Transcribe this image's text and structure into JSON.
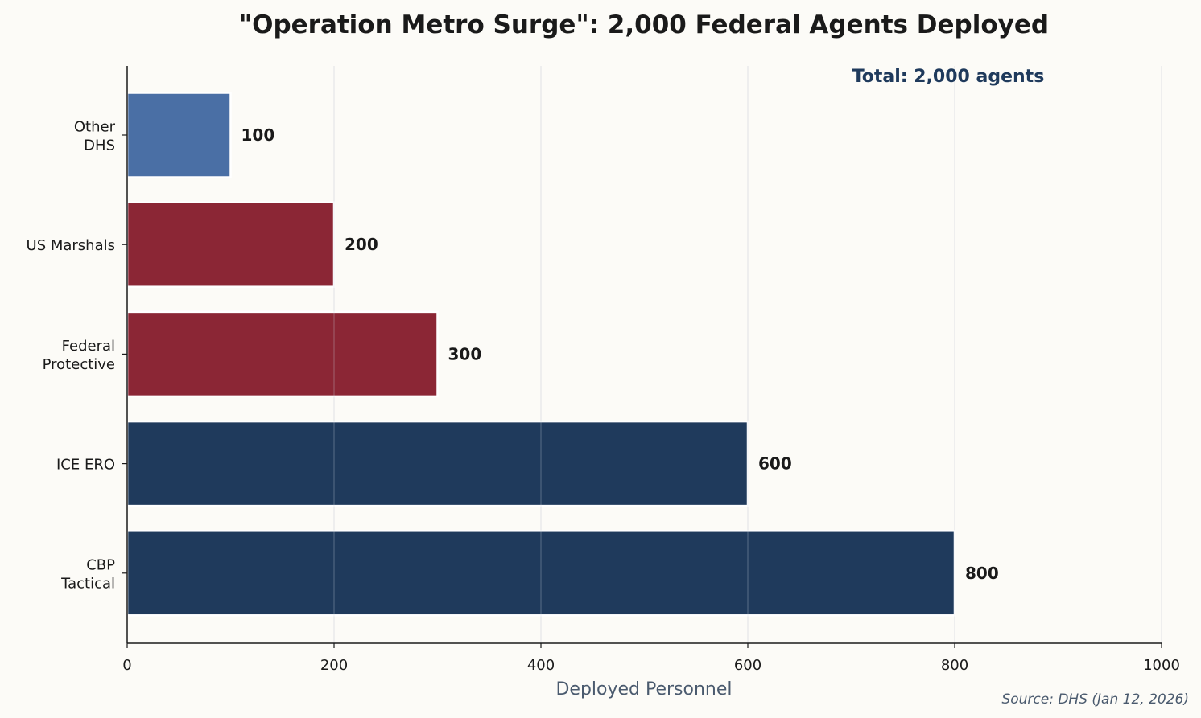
{
  "chart_data": {
    "type": "bar",
    "orientation": "horizontal",
    "title": "\"Operation Metro Surge\": 2,000 Federal Agents Deployed",
    "xlabel": "Deployed Personnel",
    "ylabel": "",
    "xlim": [
      0,
      1000
    ],
    "xticks": [
      "0",
      "200",
      "400",
      "600",
      "800",
      "1000"
    ],
    "grid": "vertical",
    "categories": [
      [
        "Other",
        "DHS"
      ],
      [
        "US Marshals"
      ],
      [
        "Federal",
        "Protective"
      ],
      [
        "ICE ERO"
      ],
      [
        "CBP",
        "Tactical"
      ]
    ],
    "values": [
      100,
      200,
      300,
      600,
      800
    ],
    "data_labels": [
      "100",
      "200",
      "300",
      "600",
      "800"
    ],
    "colors": [
      "#4a6fa5",
      "#8b2635",
      "#8b2635",
      "#1f3a5c",
      "#1f3a5c"
    ],
    "annotation": "Total: 2,000 agents",
    "source": "Source: DHS (Jan 12, 2026)"
  }
}
